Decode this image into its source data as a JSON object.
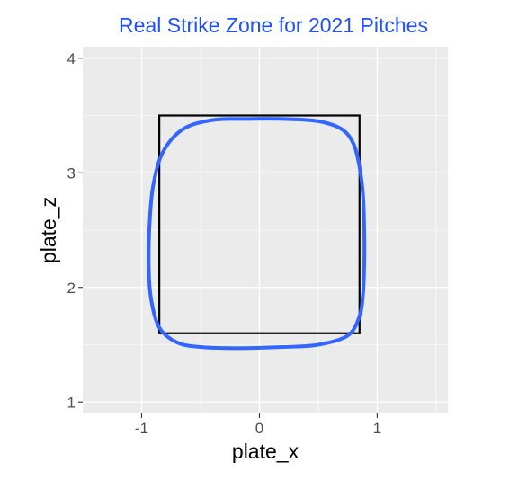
{
  "chart_data": {
    "type": "line",
    "title": "Real Strike Zone for 2021 Pitches",
    "xlabel": "plate_x",
    "ylabel": "plate_z",
    "xlim": [
      -1.5,
      1.6
    ],
    "ylim": [
      0.9,
      4.1
    ],
    "x_ticks": [
      -1,
      0,
      1
    ],
    "x_tick_labels": [
      "-1",
      "0",
      "1"
    ],
    "y_ticks": [
      1,
      2,
      3,
      4
    ],
    "y_tick_labels": [
      "1",
      "2",
      "3",
      "4"
    ],
    "grid": true,
    "aspect": "equal",
    "background": "#ebebeb",
    "gridline_color": "#ffffff",
    "title_color": "#1f4fff",
    "series": [
      {
        "kind": "contour",
        "color": "#3366ff",
        "points": [
          [
            -0.1,
            3.47
          ],
          [
            0.2,
            3.47
          ],
          [
            0.5,
            3.45
          ],
          [
            0.7,
            3.38
          ],
          [
            0.8,
            3.25
          ],
          [
            0.85,
            3.05
          ],
          [
            0.88,
            2.8
          ],
          [
            0.89,
            2.5
          ],
          [
            0.89,
            2.2
          ],
          [
            0.88,
            1.95
          ],
          [
            0.85,
            1.75
          ],
          [
            0.75,
            1.58
          ],
          [
            0.5,
            1.5
          ],
          [
            0.2,
            1.48
          ],
          [
            -0.2,
            1.47
          ],
          [
            -0.5,
            1.48
          ],
          [
            -0.7,
            1.52
          ],
          [
            -0.85,
            1.65
          ],
          [
            -0.92,
            1.9
          ],
          [
            -0.94,
            2.2
          ],
          [
            -0.93,
            2.6
          ],
          [
            -0.9,
            2.9
          ],
          [
            -0.82,
            3.18
          ],
          [
            -0.65,
            3.38
          ],
          [
            -0.4,
            3.46
          ]
        ]
      }
    ],
    "shapes": [
      {
        "kind": "rectangle",
        "color": "#000000",
        "x": [
          -0.85,
          0.85
        ],
        "y": [
          1.6,
          3.5
        ]
      }
    ]
  }
}
